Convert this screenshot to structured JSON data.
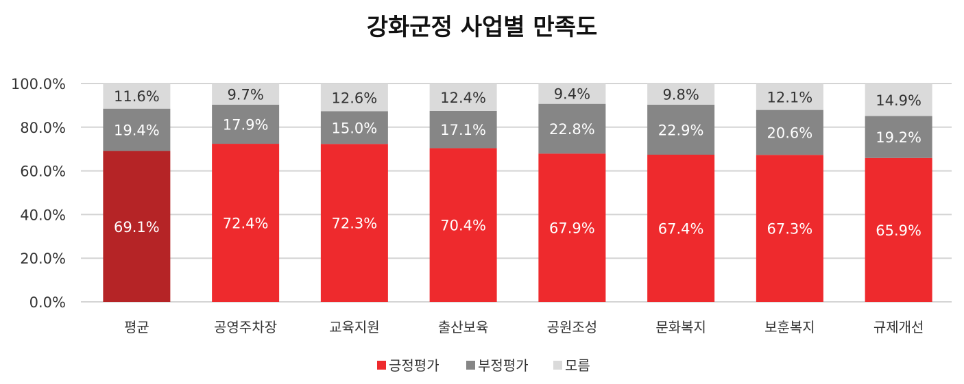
{
  "chart_data": {
    "type": "bar",
    "stacked": true,
    "title": "강화군정 사업별 만족도",
    "xlabel": "",
    "ylabel": "",
    "ylim": [
      0,
      100
    ],
    "y_ticks": [
      "0.0%",
      "20.0%",
      "40.0%",
      "60.0%",
      "80.0%",
      "100.0%"
    ],
    "categories": [
      "평균",
      "공영주차장",
      "교육지원",
      "출산보육",
      "공원조성",
      "문화복지",
      "보훈복지",
      "규제개선"
    ],
    "series": [
      {
        "name": "긍정평가",
        "color": "#ee2a2d",
        "highlight_color": "#b52426",
        "values": [
          69.1,
          72.4,
          72.3,
          70.4,
          67.9,
          67.4,
          67.3,
          65.9
        ],
        "labels": [
          "69.1%",
          "72.4%",
          "72.3%",
          "70.4%",
          "67.9%",
          "67.4%",
          "67.3%",
          "65.9%"
        ]
      },
      {
        "name": "부정평가",
        "color": "#868686",
        "values": [
          19.4,
          17.9,
          15.0,
          17.1,
          22.8,
          22.9,
          20.6,
          19.2
        ],
        "labels": [
          "19.4%",
          "17.9%",
          "15.0%",
          "17.1%",
          "22.8%",
          "22.9%",
          "20.6%",
          "19.2%"
        ]
      },
      {
        "name": "모름",
        "color": "#dadada",
        "values": [
          11.6,
          9.7,
          12.6,
          12.4,
          9.4,
          9.8,
          12.1,
          14.9
        ],
        "labels": [
          "11.6%",
          "9.7%",
          "12.6%",
          "12.4%",
          "9.4%",
          "9.8%",
          "12.1%",
          "14.9%"
        ]
      }
    ],
    "grid": true,
    "legend": "bottom"
  }
}
